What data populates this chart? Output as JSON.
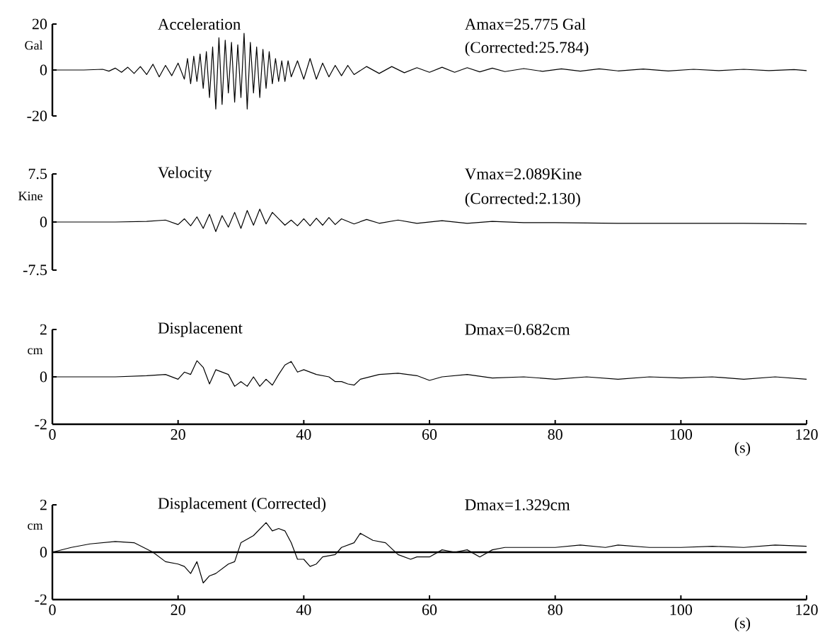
{
  "chart_data": [
    {
      "type": "line",
      "title": "Acceleration",
      "ylabel": "Gal",
      "annotations": [
        "Amax=25.775 Gal",
        "(Corrected:25.784)"
      ],
      "xlim": [
        0,
        120
      ],
      "ylim": [
        -20,
        20
      ],
      "yticks": [
        20,
        0,
        -20
      ],
      "tick_labels": "y",
      "marker": "none",
      "line_style": "solid",
      "series": [
        {
          "color": "#000000",
          "x": [
            0,
            5,
            8,
            9,
            10,
            11,
            12,
            13,
            14,
            15,
            16,
            17,
            18,
            19,
            20,
            21,
            21.5,
            22,
            22.5,
            23,
            23.5,
            24,
            24.5,
            25,
            25.5,
            26,
            26.5,
            27,
            27.5,
            28,
            28.5,
            29,
            29.5,
            30,
            30.5,
            31,
            31.5,
            32,
            32.5,
            33,
            33.5,
            34,
            34.5,
            35,
            35.5,
            36,
            36.5,
            37,
            37.5,
            38,
            39,
            40,
            41,
            42,
            43,
            44,
            45,
            46,
            47,
            48,
            50,
            52,
            54,
            56,
            58,
            60,
            62,
            64,
            66,
            68,
            70,
            72,
            75,
            78,
            81,
            84,
            87,
            90,
            94,
            98,
            102,
            106,
            110,
            114,
            118,
            120
          ],
          "values": [
            0,
            0,
            0.3,
            -0.5,
            0.8,
            -1,
            1.2,
            -1.5,
            1.5,
            -2,
            2.5,
            -3,
            2,
            -2.5,
            3,
            -4,
            5,
            -6,
            6,
            -5,
            7,
            -8,
            8,
            -12,
            10,
            -17,
            14,
            -15,
            13,
            -10,
            12,
            -14,
            11,
            -12,
            16,
            -17,
            12,
            -10,
            10,
            -12,
            9,
            -8,
            8,
            -6,
            5,
            -5,
            4,
            -5,
            4,
            -3,
            4,
            -4,
            5,
            -4,
            3,
            -3,
            2,
            -2.5,
            2,
            -2,
            1.5,
            -1.5,
            1.5,
            -1.2,
            1,
            -1,
            1.2,
            -1,
            1,
            -0.8,
            0.8,
            -0.7,
            0.6,
            -0.6,
            0.5,
            -0.5,
            0.5,
            -0.4,
            0.4,
            -0.4,
            0.3,
            -0.3,
            0.3,
            -0.3,
            0.2,
            -0.3
          ]
        }
      ]
    },
    {
      "type": "line",
      "title": "Velocity",
      "ylabel": "Kine",
      "annotations": [
        "Vmax=2.089Kine",
        "(Corrected:2.130)"
      ],
      "xlim": [
        0,
        120
      ],
      "ylim": [
        -7.5,
        7.5
      ],
      "yticks": [
        7.5,
        0,
        -7.5
      ],
      "tick_labels": "y",
      "marker": "none",
      "line_style": "solid",
      "series": [
        {
          "color": "#000000",
          "x": [
            0,
            10,
            15,
            18,
            20,
            21,
            22,
            23,
            24,
            25,
            26,
            27,
            28,
            29,
            30,
            31,
            32,
            33,
            34,
            35,
            36,
            37,
            38,
            39,
            40,
            41,
            42,
            43,
            44,
            45,
            46,
            48,
            50,
            52,
            55,
            58,
            62,
            66,
            70,
            75,
            80,
            90,
            100,
            110,
            120
          ],
          "values": [
            0,
            0,
            0.1,
            0.3,
            -0.4,
            0.5,
            -0.6,
            0.8,
            -1,
            1.2,
            -1.5,
            1.0,
            -0.8,
            1.5,
            -1,
            1.8,
            -0.5,
            2.0,
            -0.3,
            1.5,
            0.5,
            -0.5,
            0.3,
            -0.6,
            0.5,
            -0.6,
            0.6,
            -0.5,
            0.7,
            -0.4,
            0.5,
            -0.3,
            0.4,
            -0.2,
            0.3,
            -0.2,
            0.2,
            -0.2,
            0.1,
            -0.1,
            -0.1,
            -0.2,
            -0.2,
            -0.2,
            -0.3
          ]
        }
      ]
    },
    {
      "type": "line",
      "title": "Displacenent",
      "ylabel": "cm",
      "xlabel": "(s)",
      "annotations": [
        "Dmax=0.682cm"
      ],
      "xlim": [
        0,
        120
      ],
      "ylim": [
        -2,
        2
      ],
      "xticks": [
        0,
        20,
        40,
        60,
        80,
        100,
        120
      ],
      "yticks": [
        2,
        0,
        -2
      ],
      "marker": "none",
      "line_style": "solid",
      "series": [
        {
          "color": "#000000",
          "x": [
            0,
            10,
            15,
            18,
            20,
            21,
            22,
            23,
            24,
            25,
            26,
            27,
            28,
            29,
            30,
            31,
            32,
            33,
            34,
            35,
            36,
            37,
            38,
            39,
            40,
            41,
            42,
            44,
            45,
            46,
            47,
            48,
            49,
            52,
            55,
            58,
            60,
            62,
            66,
            70,
            75,
            80,
            85,
            90,
            95,
            100,
            105,
            110,
            115,
            120
          ],
          "values": [
            0,
            0,
            0.05,
            0.1,
            -0.1,
            0.2,
            0.1,
            0.68,
            0.4,
            -0.3,
            0.3,
            0.2,
            0.1,
            -0.4,
            -0.2,
            -0.4,
            0.0,
            -0.4,
            -0.1,
            -0.35,
            0.1,
            0.5,
            0.65,
            0.2,
            0.3,
            0.2,
            0.1,
            0.0,
            -0.2,
            -0.2,
            -0.3,
            -0.35,
            -0.1,
            0.1,
            0.15,
            0.05,
            -0.15,
            0.0,
            0.1,
            -0.05,
            0.0,
            -0.1,
            0.0,
            -0.1,
            0.0,
            -0.05,
            0.0,
            -0.1,
            0.0,
            -0.1
          ]
        }
      ]
    },
    {
      "type": "line",
      "title": "Displacement (Corrected)",
      "ylabel": "cm",
      "xlabel": "(s)",
      "annotations": [
        "Dmax=1.329cm"
      ],
      "xlim": [
        0,
        120
      ],
      "ylim": [
        -2,
        2
      ],
      "xticks": [
        0,
        20,
        40,
        60,
        80,
        100,
        120
      ],
      "yticks": [
        2,
        0,
        -2
      ],
      "marker": "none",
      "line_style": "solid",
      "ref_lines": [
        {
          "axis": "y",
          "value": 0,
          "color": "#000000"
        }
      ],
      "series": [
        {
          "color": "#000000",
          "x": [
            0,
            3,
            6,
            10,
            13,
            16,
            18,
            20,
            21,
            22,
            23,
            24,
            25,
            26,
            28,
            29,
            30,
            32,
            34,
            35,
            36,
            37,
            38,
            39,
            40,
            41,
            42,
            43,
            45,
            46,
            48,
            49,
            51,
            53,
            55,
            57,
            58,
            60,
            62,
            64,
            66,
            68,
            70,
            72,
            76,
            80,
            84,
            88,
            90,
            95,
            100,
            105,
            110,
            115,
            120
          ],
          "values": [
            0,
            0.2,
            0.35,
            0.45,
            0.4,
            0.0,
            -0.4,
            -0.5,
            -0.6,
            -0.9,
            -0.4,
            -1.3,
            -1.0,
            -0.9,
            -0.5,
            -0.4,
            0.4,
            0.7,
            1.25,
            0.9,
            1.0,
            0.9,
            0.4,
            -0.3,
            -0.3,
            -0.6,
            -0.5,
            -0.2,
            -0.1,
            0.2,
            0.4,
            0.8,
            0.5,
            0.4,
            -0.1,
            -0.3,
            -0.2,
            -0.2,
            0.1,
            0.0,
            0.1,
            -0.2,
            0.1,
            0.2,
            0.2,
            0.2,
            0.3,
            0.2,
            0.3,
            0.2,
            0.2,
            0.25,
            0.2,
            0.3,
            0.25
          ]
        }
      ]
    }
  ]
}
